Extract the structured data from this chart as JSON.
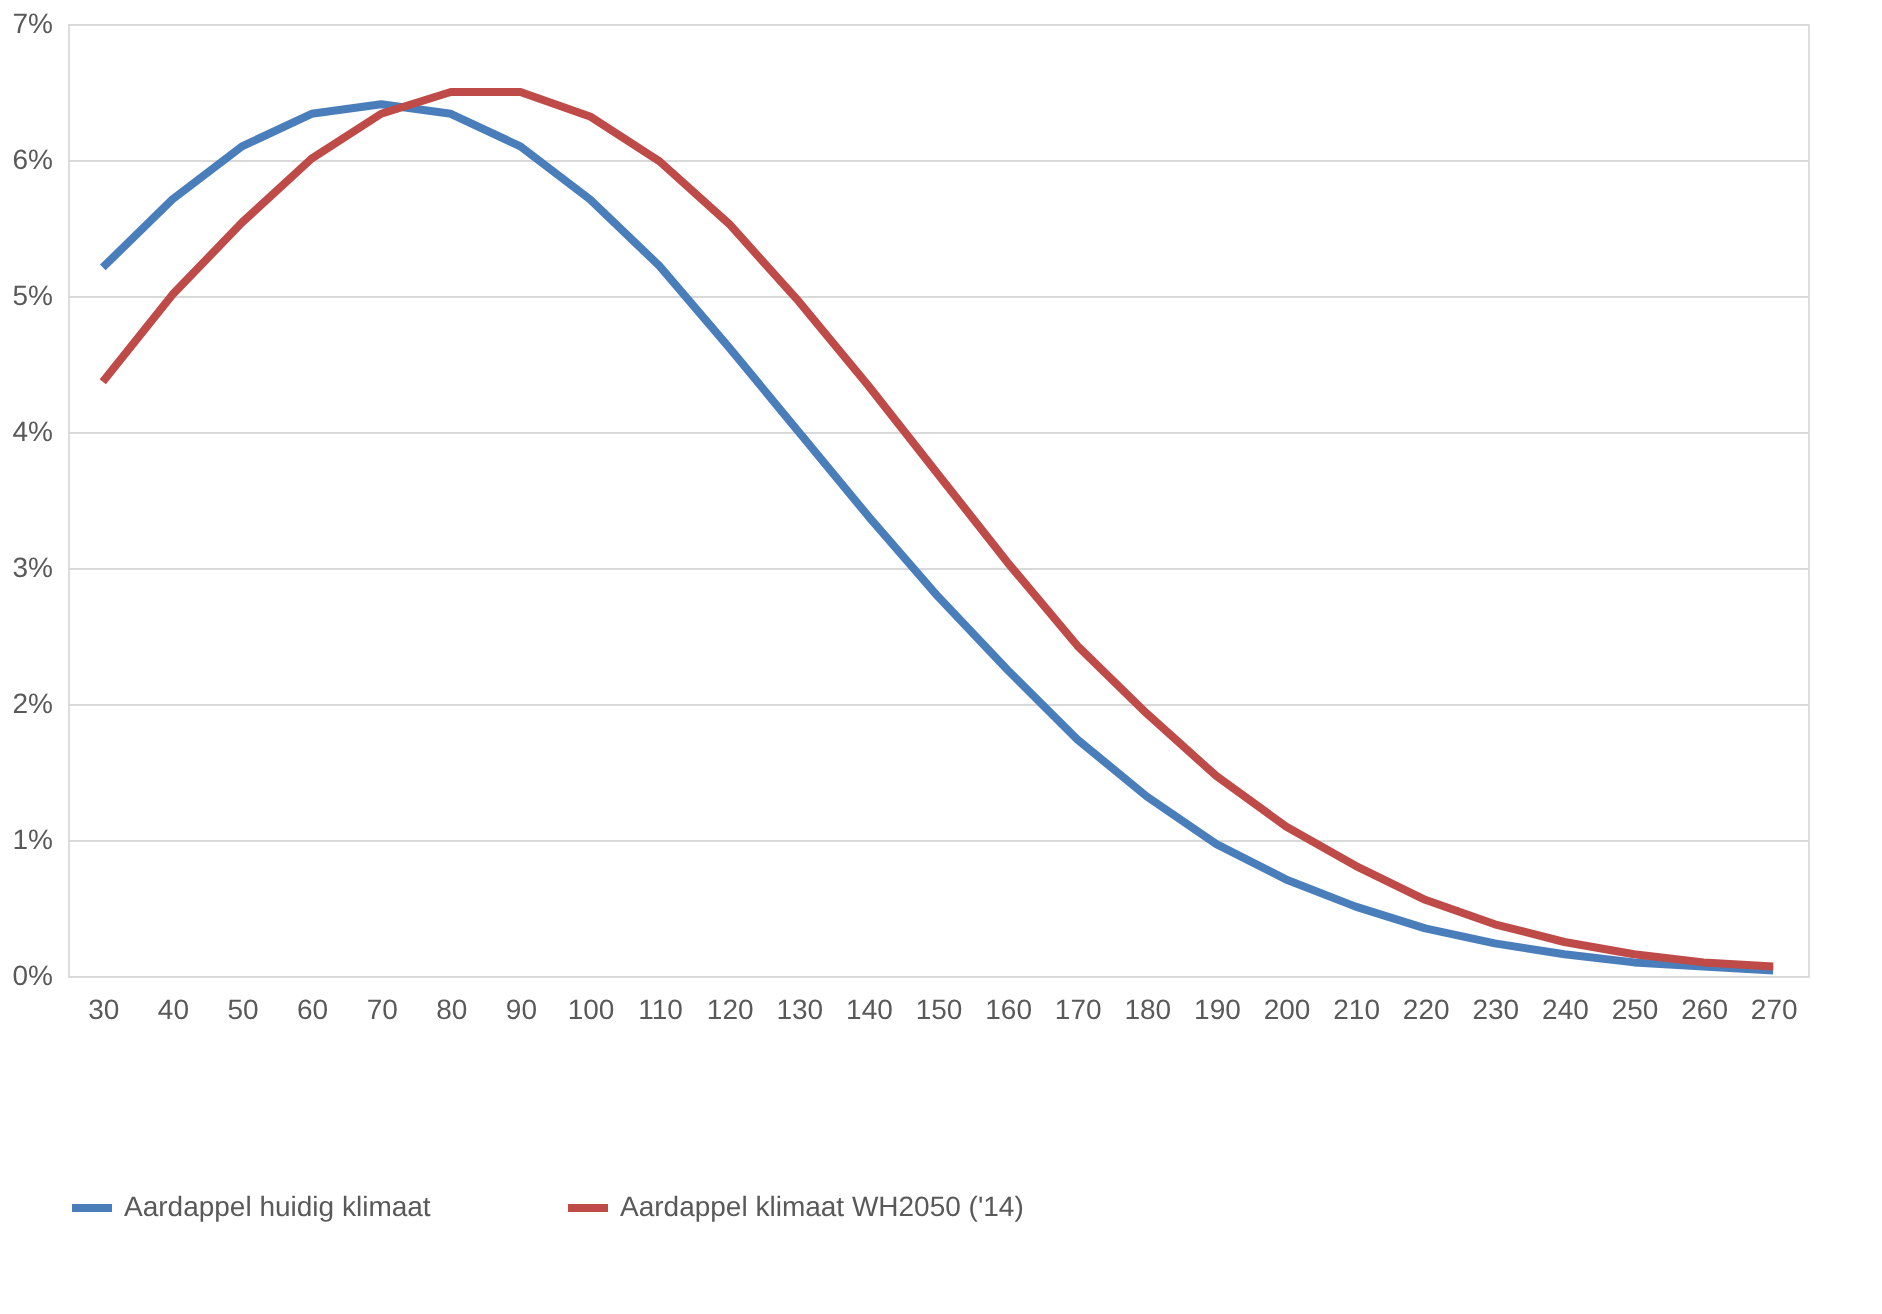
{
  "chart_data": {
    "type": "line",
    "categories": [
      "30",
      "40",
      "50",
      "60",
      "70",
      "80",
      "90",
      "100",
      "110",
      "120",
      "130",
      "140",
      "150",
      "160",
      "170",
      "180",
      "190",
      "200",
      "210",
      "220",
      "230",
      "240",
      "250",
      "260",
      "270"
    ],
    "series": [
      {
        "name": "Aardappel huidig klimaat",
        "color": "#4a7ebb",
        "values": [
          5.21,
          5.71,
          6.1,
          6.34,
          6.41,
          6.34,
          6.1,
          5.71,
          5.22,
          4.62,
          4.0,
          3.38,
          2.79,
          2.25,
          1.74,
          1.32,
          0.97,
          0.71,
          0.51,
          0.35,
          0.24,
          0.16,
          0.1,
          0.07,
          0.04
        ]
      },
      {
        "name": "Aardappel klimaat WH2050 ('14)",
        "color": "#be4b48",
        "values": [
          4.37,
          5.01,
          5.54,
          6.01,
          6.34,
          6.5,
          6.5,
          6.32,
          5.99,
          5.53,
          4.96,
          4.34,
          3.69,
          3.04,
          2.43,
          1.93,
          1.47,
          1.1,
          0.81,
          0.56,
          0.38,
          0.25,
          0.16,
          0.1,
          0.07
        ]
      }
    ],
    "ylim": [
      0,
      7
    ],
    "yticks": [
      {
        "value": 0,
        "label": "0%"
      },
      {
        "value": 1,
        "label": "1%"
      },
      {
        "value": 2,
        "label": "2%"
      },
      {
        "value": 3,
        "label": "3%"
      },
      {
        "value": 4,
        "label": "4%"
      },
      {
        "value": 5,
        "label": "5%"
      },
      {
        "value": 6,
        "label": "6%"
      },
      {
        "value": 7,
        "label": "7%"
      }
    ],
    "grid": "y",
    "legend": "bottom",
    "marker": "none",
    "line_style": "solid"
  }
}
